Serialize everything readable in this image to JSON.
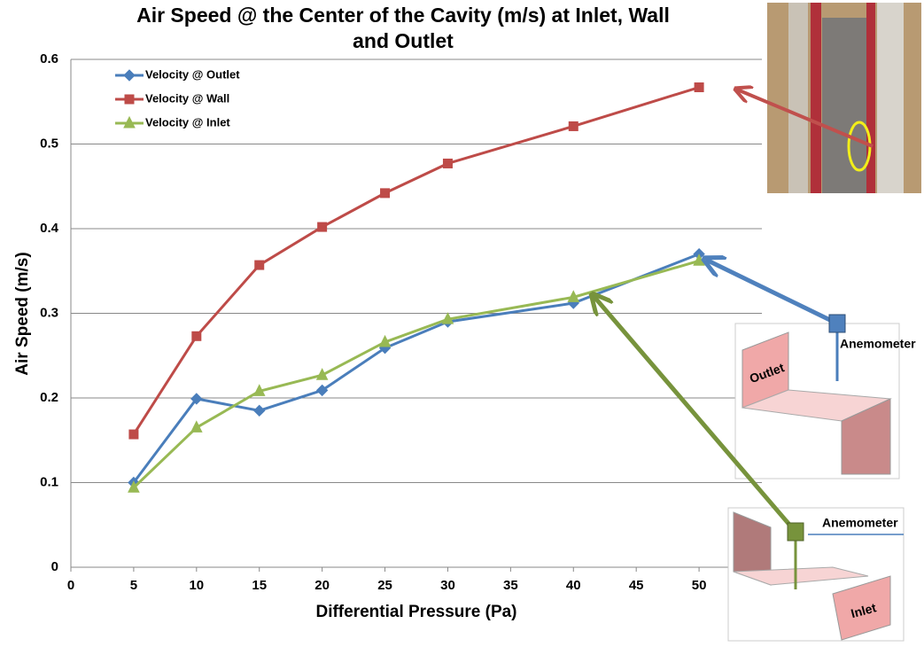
{
  "chart_data": {
    "type": "line",
    "title": [
      "Air Speed @ the Center of the Cavity (m/s) at Inlet, Wall",
      "and Outlet"
    ],
    "x_label": "Differential Pressure (Pa)",
    "y_label": "Air Speed (m/s)",
    "x": [
      5,
      10,
      15,
      20,
      25,
      30,
      40,
      50
    ],
    "series": [
      {
        "name": "Velocity @ Outlet",
        "color": "#4a7ebb",
        "marker": "diamond",
        "values": [
          0.1,
          0.199,
          0.185,
          0.209,
          0.259,
          0.29,
          0.312,
          0.37
        ]
      },
      {
        "name": "Velocity @ Wall",
        "color": "#be4b48",
        "marker": "square",
        "values": [
          0.157,
          0.273,
          0.357,
          0.402,
          0.442,
          0.477,
          0.521,
          0.567
        ]
      },
      {
        "name": "Velocity @ Inlet",
        "color": "#98b954",
        "marker": "triangle",
        "values": [
          0.094,
          0.165,
          0.208,
          0.227,
          0.266,
          0.293,
          0.319,
          0.362
        ]
      }
    ],
    "xlim": [
      0,
      55
    ],
    "xticks": [
      0,
      5,
      10,
      15,
      20,
      25,
      30,
      35,
      40,
      45,
      50
    ],
    "ylim": [
      0,
      0.6
    ],
    "yticks": [
      0,
      0.1,
      0.2,
      0.3,
      0.4,
      0.5,
      0.6
    ],
    "grid": true,
    "legend": "upper-left",
    "annotations": [
      "Anemometer",
      "Outlet",
      "Anemometer",
      "Inlet"
    ]
  }
}
